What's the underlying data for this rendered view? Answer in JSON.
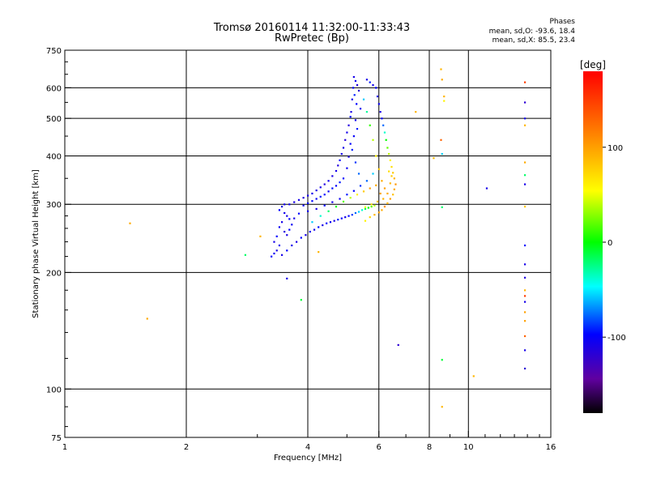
{
  "header": {
    "title_line1": "Tromsø 20160114 11:32:00-11:33:43",
    "title_line2": "RwPretec (Bp)",
    "phases_title": "Phases",
    "phases_line1": "mean, sd,O: -93.6, 18.4",
    "phases_line2": "mean, sd,X:  85.5, 23.4"
  },
  "colorbar": {
    "label": "[deg]",
    "range": [
      -180,
      180
    ],
    "tick_values": [
      100,
      0,
      -100
    ],
    "tick_labels": [
      "100",
      "0",
      "-100"
    ]
  },
  "chart_data": {
    "type": "scatter",
    "xlabel": "Frequency [MHz]",
    "ylabel": "Stationary phase Virtual Height [km]",
    "xscale": "log",
    "yscale": "log",
    "xlim": [
      1,
      16
    ],
    "ylim": [
      75,
      750
    ],
    "x_ticks": [
      1,
      2,
      4,
      6,
      8,
      10,
      16
    ],
    "x_tick_labels": [
      "1",
      "2",
      "4",
      "6",
      "8",
      "10",
      "16"
    ],
    "y_ticks": [
      75,
      100,
      200,
      300,
      400,
      500,
      600,
      750
    ],
    "y_tick_labels": [
      "75",
      "100",
      "200",
      "300",
      "400",
      "500",
      "600",
      "750"
    ],
    "grid_x": [
      2,
      4,
      6,
      8,
      10
    ],
    "grid_y": [
      100,
      200,
      300,
      400,
      500,
      600
    ],
    "color_variable": "phase [deg]",
    "points": [
      [
        5.2,
        640,
        -110
      ],
      [
        5.25,
        625,
        -105
      ],
      [
        5.3,
        610,
        -115
      ],
      [
        5.18,
        600,
        -100
      ],
      [
        5.35,
        590,
        -120
      ],
      [
        5.22,
        575,
        -95
      ],
      [
        5.15,
        560,
        -110
      ],
      [
        5.28,
        545,
        -100
      ],
      [
        5.4,
        530,
        -105
      ],
      [
        5.12,
        520,
        -112
      ],
      [
        5.1,
        505,
        -98
      ],
      [
        5.25,
        495,
        -108
      ],
      [
        5.05,
        480,
        -115
      ],
      [
        5.3,
        470,
        -95
      ],
      [
        5.0,
        460,
        -110
      ],
      [
        5.2,
        450,
        -102
      ],
      [
        4.95,
        440,
        -118
      ],
      [
        5.1,
        430,
        -100
      ],
      [
        4.9,
        420,
        -110
      ],
      [
        5.15,
        415,
        -95
      ],
      [
        4.85,
        405,
        -108
      ],
      [
        5.05,
        398,
        -112
      ],
      [
        4.8,
        390,
        -100
      ],
      [
        5.25,
        385,
        -90
      ],
      [
        4.75,
        378,
        -115
      ],
      [
        5.0,
        372,
        -105
      ],
      [
        4.7,
        366,
        -110
      ],
      [
        5.35,
        360,
        -80
      ],
      [
        4.6,
        355,
        -112
      ],
      [
        4.9,
        350,
        -100
      ],
      [
        4.5,
        345,
        -108
      ],
      [
        4.8,
        342,
        -95
      ],
      [
        4.4,
        338,
        -115
      ],
      [
        4.7,
        335,
        -102
      ],
      [
        4.3,
        332,
        -110
      ],
      [
        4.6,
        330,
        -98
      ],
      [
        4.2,
        326,
        -112
      ],
      [
        4.5,
        324,
        -105
      ],
      [
        4.1,
        320,
        -108
      ],
      [
        4.4,
        318,
        -100
      ],
      [
        4.0,
        316,
        -110
      ],
      [
        4.3,
        314,
        -96
      ],
      [
        3.9,
        312,
        -115
      ],
      [
        4.2,
        310,
        -104
      ],
      [
        3.8,
        308,
        -110
      ],
      [
        4.1,
        306,
        -100
      ],
      [
        3.7,
        304,
        -112
      ],
      [
        4.0,
        302,
        -98
      ],
      [
        3.6,
        300,
        -108
      ],
      [
        3.9,
        298,
        -105
      ],
      [
        3.5,
        300,
        -110
      ],
      [
        3.45,
        296,
        -115
      ],
      [
        3.4,
        290,
        -100
      ],
      [
        3.5,
        285,
        -108
      ],
      [
        3.55,
        280,
        -112
      ],
      [
        3.6,
        275,
        -100
      ],
      [
        3.45,
        270,
        -110
      ],
      [
        3.4,
        262,
        -105
      ],
      [
        3.5,
        255,
        -115
      ],
      [
        3.35,
        248,
        -100
      ],
      [
        3.3,
        240,
        -110
      ],
      [
        3.4,
        235,
        -108
      ],
      [
        3.35,
        228,
        -112
      ],
      [
        3.3,
        224,
        -105
      ],
      [
        3.25,
        220,
        -100
      ],
      [
        3.45,
        222,
        -110
      ],
      [
        3.55,
        228,
        -100
      ],
      [
        3.65,
        235,
        -108
      ],
      [
        3.75,
        240,
        -112
      ],
      [
        3.85,
        246,
        -100
      ],
      [
        3.95,
        250,
        -110
      ],
      [
        4.05,
        255,
        -104
      ],
      [
        4.15,
        258,
        -108
      ],
      [
        4.25,
        262,
        -98
      ],
      [
        4.35,
        265,
        -112
      ],
      [
        4.45,
        268,
        -100
      ],
      [
        4.55,
        270,
        -106
      ],
      [
        4.65,
        272,
        -110
      ],
      [
        4.75,
        274,
        -95
      ],
      [
        4.85,
        276,
        -102
      ],
      [
        4.95,
        278,
        -108
      ],
      [
        5.05,
        280,
        -100
      ],
      [
        5.15,
        282,
        -90
      ],
      [
        5.25,
        285,
        -80
      ],
      [
        5.35,
        287,
        -60
      ],
      [
        5.45,
        290,
        -40
      ],
      [
        5.55,
        292,
        -20
      ],
      [
        5.65,
        294,
        0
      ],
      [
        5.75,
        296,
        20
      ],
      [
        5.85,
        298,
        40
      ],
      [
        5.55,
        272,
        60
      ],
      [
        5.7,
        278,
        75
      ],
      [
        5.85,
        282,
        90
      ],
      [
        6.0,
        286,
        100
      ],
      [
        6.1,
        290,
        95
      ],
      [
        6.2,
        296,
        105
      ],
      [
        6.3,
        302,
        90
      ],
      [
        6.4,
        310,
        100
      ],
      [
        6.5,
        318,
        85
      ],
      [
        6.55,
        328,
        95
      ],
      [
        6.6,
        338,
        105
      ],
      [
        6.55,
        350,
        90
      ],
      [
        6.5,
        362,
        80
      ],
      [
        6.45,
        375,
        70
      ],
      [
        6.4,
        390,
        60
      ],
      [
        6.35,
        405,
        40
      ],
      [
        6.3,
        420,
        20
      ],
      [
        6.25,
        440,
        0
      ],
      [
        6.2,
        460,
        -40
      ],
      [
        6.15,
        480,
        -80
      ],
      [
        6.1,
        500,
        -100
      ],
      [
        6.05,
        520,
        -110
      ],
      [
        6.0,
        545,
        -105
      ],
      [
        5.95,
        570,
        -112
      ],
      [
        5.9,
        600,
        -100
      ],
      [
        5.8,
        610,
        -108
      ],
      [
        5.7,
        620,
        -95
      ],
      [
        5.6,
        630,
        -110
      ],
      [
        5.5,
        560,
        -60
      ],
      [
        5.6,
        520,
        -30
      ],
      [
        5.7,
        480,
        10
      ],
      [
        5.8,
        440,
        40
      ],
      [
        5.9,
        400,
        60
      ],
      [
        6.0,
        370,
        80
      ],
      [
        6.1,
        345,
        95
      ],
      [
        6.2,
        330,
        100
      ],
      [
        6.3,
        320,
        95
      ],
      [
        6.4,
        340,
        90
      ],
      [
        6.45,
        355,
        80
      ],
      [
        6.35,
        365,
        70
      ],
      [
        5.8,
        360,
        -60
      ],
      [
        5.6,
        345,
        -80
      ],
      [
        5.4,
        335,
        -90
      ],
      [
        5.2,
        325,
        -100
      ],
      [
        5.0,
        318,
        -95
      ],
      [
        4.8,
        310,
        -105
      ],
      [
        4.6,
        304,
        -110
      ],
      [
        4.4,
        298,
        -100
      ],
      [
        4.2,
        292,
        -112
      ],
      [
        4.0,
        288,
        -108
      ],
      [
        3.8,
        284,
        -100
      ],
      [
        3.7,
        276,
        -110
      ],
      [
        3.65,
        266,
        -105
      ],
      [
        3.6,
        258,
        -100
      ],
      [
        3.55,
        250,
        -112
      ],
      [
        4.1,
        270,
        -60
      ],
      [
        4.3,
        280,
        -40
      ],
      [
        4.5,
        288,
        -20
      ],
      [
        4.7,
        296,
        0
      ],
      [
        4.9,
        305,
        20
      ],
      [
        5.1,
        312,
        40
      ],
      [
        5.3,
        318,
        60
      ],
      [
        5.5,
        324,
        80
      ],
      [
        5.7,
        330,
        100
      ],
      [
        5.9,
        336,
        95
      ],
      [
        6.05,
        320,
        100
      ],
      [
        6.15,
        310,
        90
      ],
      [
        5.95,
        305,
        85
      ],
      [
        5.75,
        300,
        70
      ],
      [
        5.55,
        295,
        50
      ],
      [
        1.45,
        268,
        95
      ],
      [
        1.6,
        152,
        95
      ],
      [
        2.8,
        222,
        -20
      ],
      [
        3.05,
        248,
        90
      ],
      [
        3.55,
        193,
        -110
      ],
      [
        3.85,
        170,
        -10
      ],
      [
        4.25,
        226,
        90
      ],
      [
        6.7,
        130,
        -120
      ],
      [
        7.4,
        520,
        90
      ],
      [
        8.2,
        395,
        90
      ],
      [
        8.55,
        440,
        130
      ],
      [
        8.6,
        405,
        -60
      ],
      [
        8.6,
        295,
        -20
      ],
      [
        8.6,
        119,
        -10
      ],
      [
        8.6,
        90,
        90
      ],
      [
        8.7,
        570,
        90
      ],
      [
        8.7,
        555,
        60
      ],
      [
        8.55,
        670,
        90
      ],
      [
        8.6,
        630,
        95
      ],
      [
        10.3,
        108,
        90
      ],
      [
        11.1,
        330,
        -110
      ],
      [
        13.8,
        620,
        150
      ],
      [
        13.8,
        550,
        -120
      ],
      [
        13.8,
        500,
        -110
      ],
      [
        13.8,
        480,
        90
      ],
      [
        13.8,
        385,
        95
      ],
      [
        13.8,
        357,
        -20
      ],
      [
        13.8,
        338,
        -110
      ],
      [
        13.8,
        296,
        80
      ],
      [
        13.8,
        235,
        -100
      ],
      [
        13.8,
        210,
        -110
      ],
      [
        13.8,
        194,
        -115
      ],
      [
        13.8,
        180,
        90
      ],
      [
        13.8,
        174,
        150
      ],
      [
        13.8,
        168,
        -110
      ],
      [
        13.8,
        158,
        100
      ],
      [
        13.8,
        150,
        100
      ],
      [
        13.8,
        137,
        130
      ],
      [
        13.8,
        126,
        -110
      ],
      [
        13.8,
        113,
        -120
      ]
    ]
  }
}
